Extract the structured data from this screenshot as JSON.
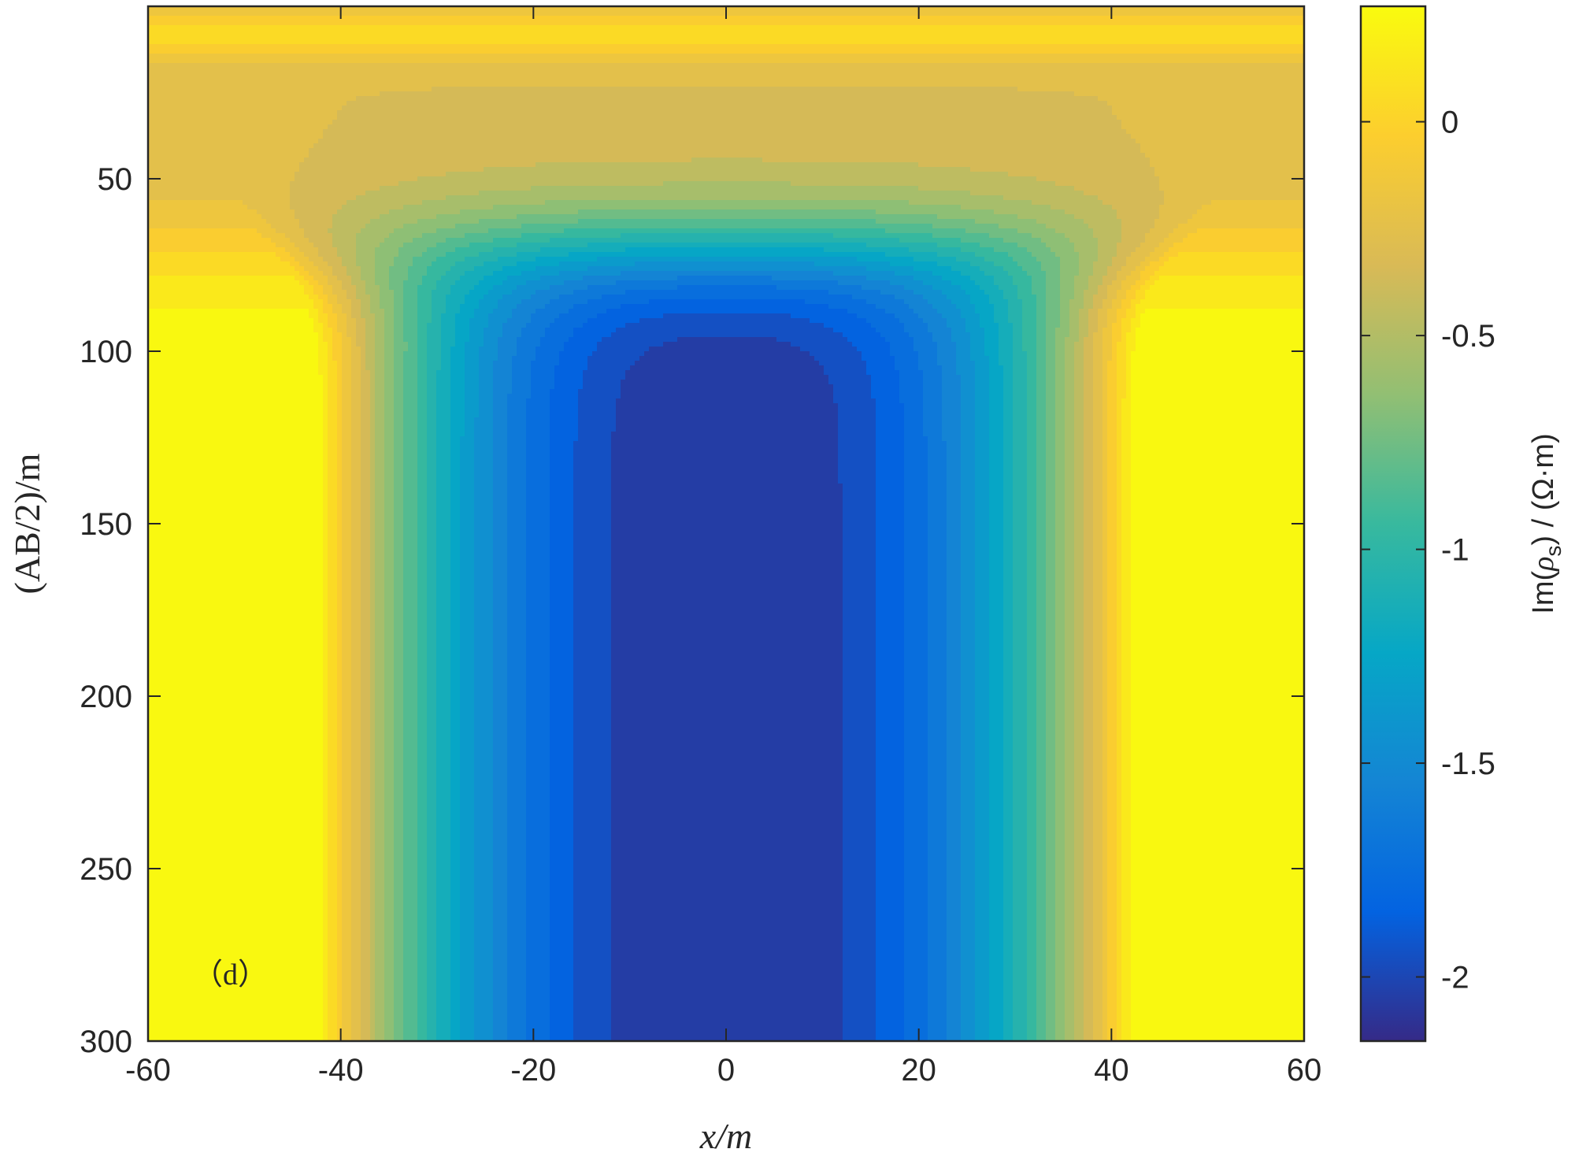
{
  "chart_data": {
    "type": "heatmap",
    "subtype": "filled-contour",
    "panel_label": "（d）",
    "xlabel": "x/m",
    "ylabel": "(AB/2)/m",
    "xlim": [
      -60,
      60
    ],
    "ylim": [
      0,
      300
    ],
    "y_reversed": true,
    "x_ticks": [
      -60,
      -40,
      -20,
      0,
      20,
      40,
      60
    ],
    "x_tick_labels": [
      "-60",
      "-40",
      "-20",
      "0",
      "20",
      "40",
      "60"
    ],
    "y_ticks": [
      50,
      100,
      150,
      200,
      250,
      300
    ],
    "y_tick_labels": [
      "50",
      "100",
      "150",
      "200",
      "250",
      "300"
    ],
    "colorbar": {
      "label": "Im(ρs) / (Ω·m)",
      "label_parts": {
        "before": "Im(",
        "symbol": "ρ",
        "subscript": "s",
        "after": ") / (Ω·m)"
      },
      "range": [
        -2.15,
        0.27
      ],
      "ticks": [
        0,
        -0.5,
        -1,
        -1.5,
        -2
      ],
      "tick_labels": [
        "0",
        "-0.5",
        "-1",
        "-1.5",
        "-2"
      ],
      "colormap": "parula"
    },
    "contour_levels": [
      -2.1,
      -2.0,
      -1.9,
      -1.8,
      -1.7,
      -1.6,
      -1.5,
      -1.4,
      -1.3,
      -1.2,
      -1.1,
      -1.0,
      -0.9,
      -0.8,
      -0.7,
      -0.6,
      -0.5,
      -0.4,
      -0.3,
      -0.2,
      -0.1,
      0.0,
      0.1,
      0.2
    ],
    "field_description": "minimum ≈ -2.1 centered at x=0 below AB/2≈90; values rise toward 0.25 at the lateral edges x=±60 at large AB/2; ≈0 band near AB/2≈10"
  },
  "colors": {
    "parula": [
      "#352a87",
      "#0363e1",
      "#1485d4",
      "#06a7c6",
      "#38b99e",
      "#92bf73",
      "#d9ba56",
      "#fcce2e",
      "#f9fb0e"
    ],
    "axis": "#262626"
  }
}
